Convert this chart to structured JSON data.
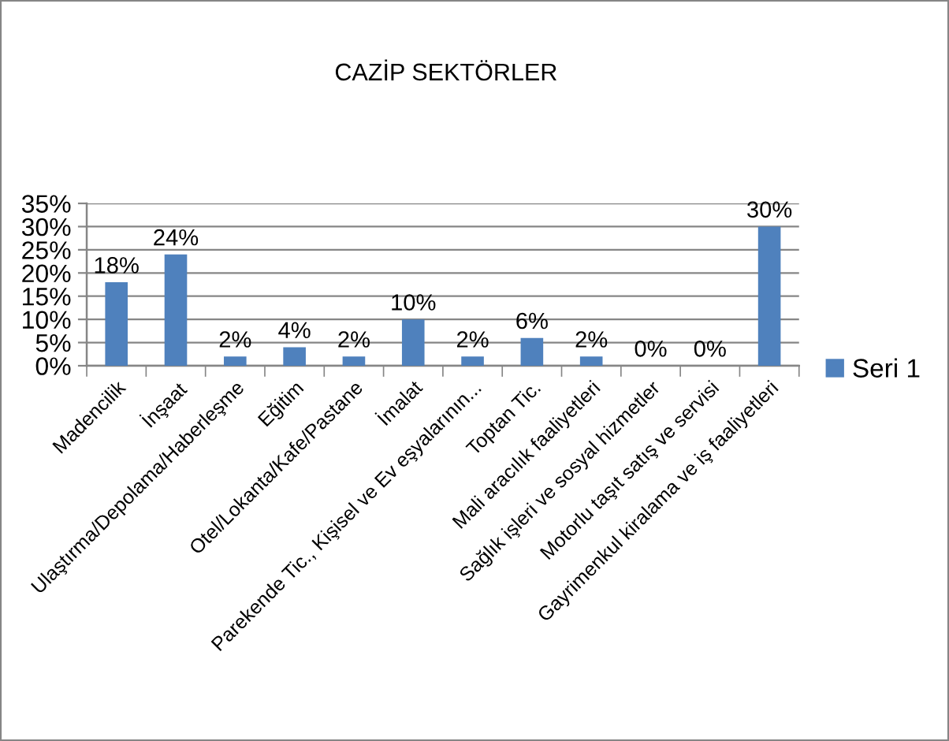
{
  "chart_data": {
    "type": "bar",
    "title": "CAZİP SEKTÖRLER",
    "categories": [
      "Madencilik",
      "İnşaat",
      "Ulaştırma/Depolama/Haberleşme",
      "Eğitim",
      "Otel/Lokanta/Kafe/Pastane",
      "İmalat",
      "Parekende Tic., Kişisel ve Ev eşyalarının...",
      "Toptan Tic.",
      "Mali aracılık faaliyetleri",
      "Sağlık işleri ve sosyal hizmetler",
      "Motorlu taşıt satış ve servisi",
      "Gayrimenkul kiralama ve iş faaliyetleri"
    ],
    "series": [
      {
        "name": "Seri 1",
        "color": "#4f81bd",
        "values": [
          18,
          24,
          2,
          4,
          2,
          10,
          2,
          6,
          2,
          0,
          0,
          30
        ],
        "value_labels": [
          "18%",
          "24%",
          "2%",
          "4%",
          "2%",
          "10%",
          "2%",
          "6%",
          "2%",
          "0%",
          "0%",
          "30%"
        ]
      }
    ],
    "ylim": [
      0,
      35
    ],
    "yticks": [
      {
        "value": 0,
        "label": "0%"
      },
      {
        "value": 5,
        "label": "5%"
      },
      {
        "value": 10,
        "label": "10%"
      },
      {
        "value": 15,
        "label": "15%"
      },
      {
        "value": 20,
        "label": "20%"
      },
      {
        "value": 25,
        "label": "25%"
      },
      {
        "value": 30,
        "label": "30%"
      },
      {
        "value": 35,
        "label": "35%"
      }
    ],
    "grid": "y",
    "legend": "right"
  }
}
